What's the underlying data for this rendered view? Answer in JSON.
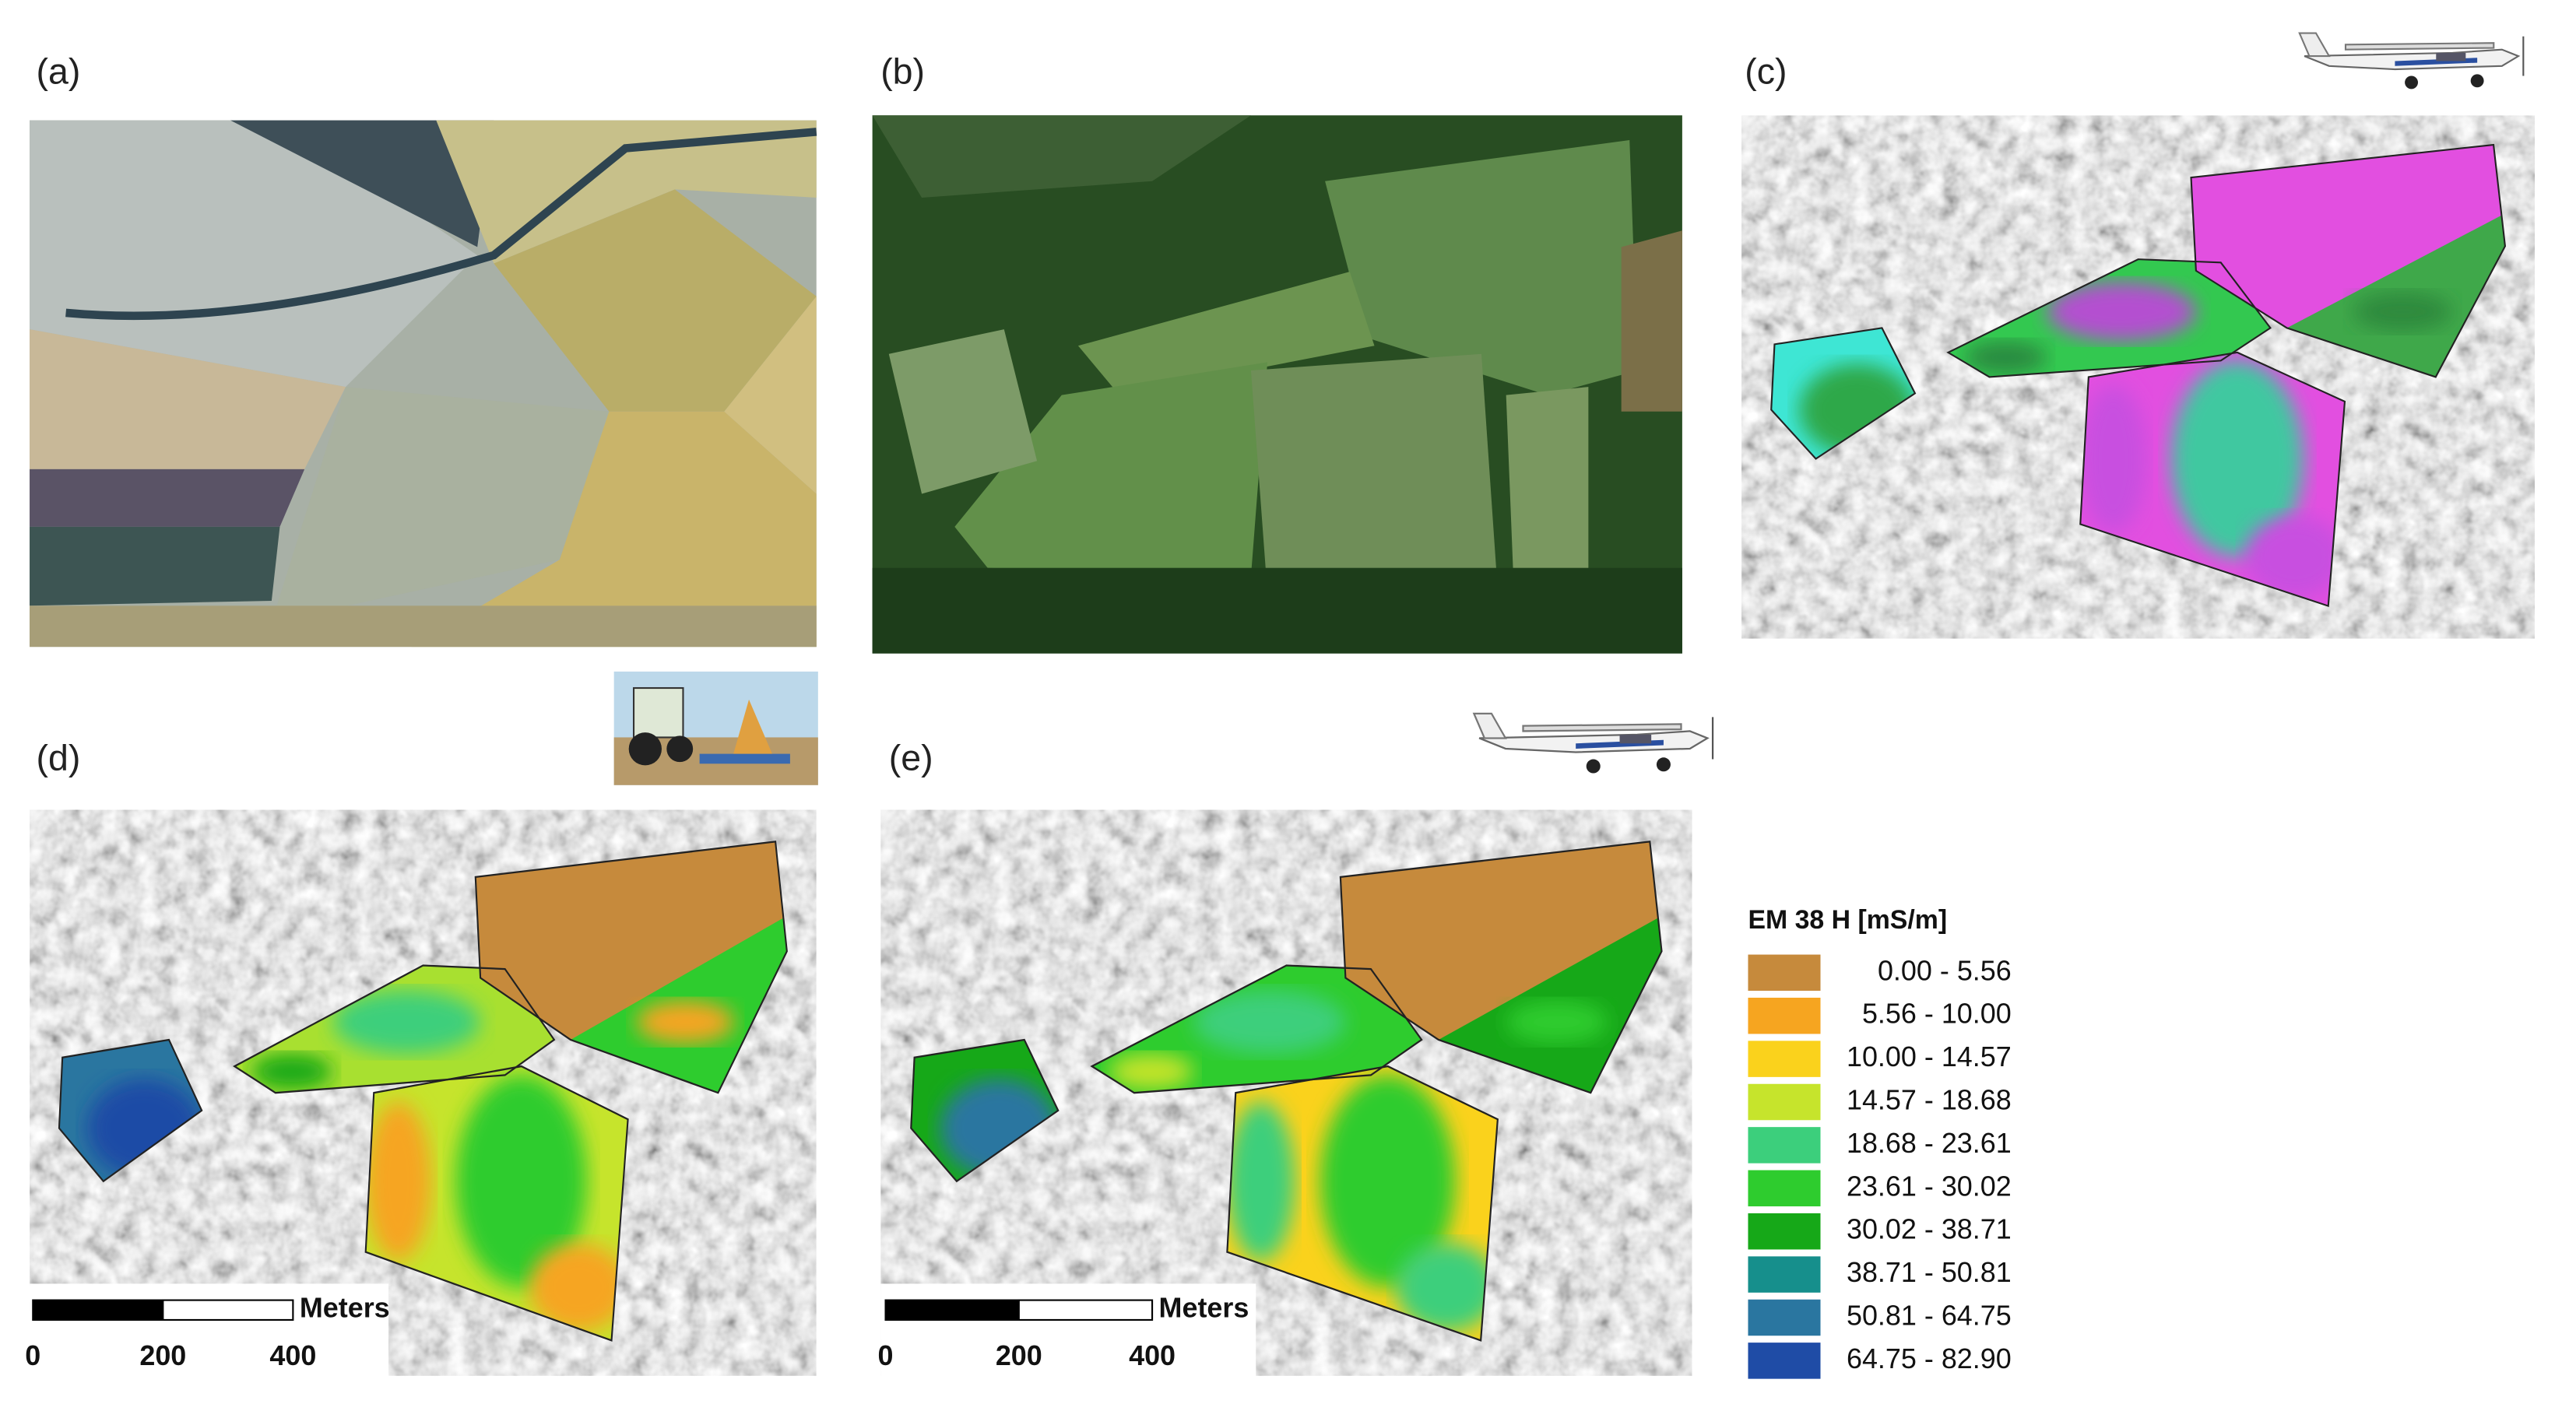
{
  "panels": [
    {
      "label": "(a)"
    },
    {
      "label": "(b)"
    },
    {
      "label": "(c)"
    },
    {
      "label": "(d)"
    },
    {
      "label": "(e)"
    }
  ],
  "legend": {
    "title": "EM 38 H [mS/m]",
    "items": [
      {
        "label": "0.00 -  5.56",
        "color": "#c68a3c"
      },
      {
        "label": "5.56 - 10.00",
        "color": "#f6a520"
      },
      {
        "label": "10.00 - 14.57",
        "color": "#fad21c"
      },
      {
        "label": "14.57 - 18.68",
        "color": "#c6e42c"
      },
      {
        "label": "18.68 - 23.61",
        "color": "#3ccf7c"
      },
      {
        "label": "23.61 - 30.02",
        "color": "#2ecc2e"
      },
      {
        "label": "30.02 - 38.71",
        "color": "#16a818"
      },
      {
        "label": "38.71 - 50.81",
        "color": "#168f8c"
      },
      {
        "label": "50.81 - 64.75",
        "color": "#2a76a0"
      },
      {
        "label": "64.75 - 82.90",
        "color": "#1f4ca6"
      }
    ]
  },
  "scale_bars": [
    {
      "unit": "Meters",
      "ticks": [
        0,
        200,
        400
      ]
    },
    {
      "unit": "Meters",
      "ticks": [
        0,
        200,
        400
      ]
    }
  ]
}
